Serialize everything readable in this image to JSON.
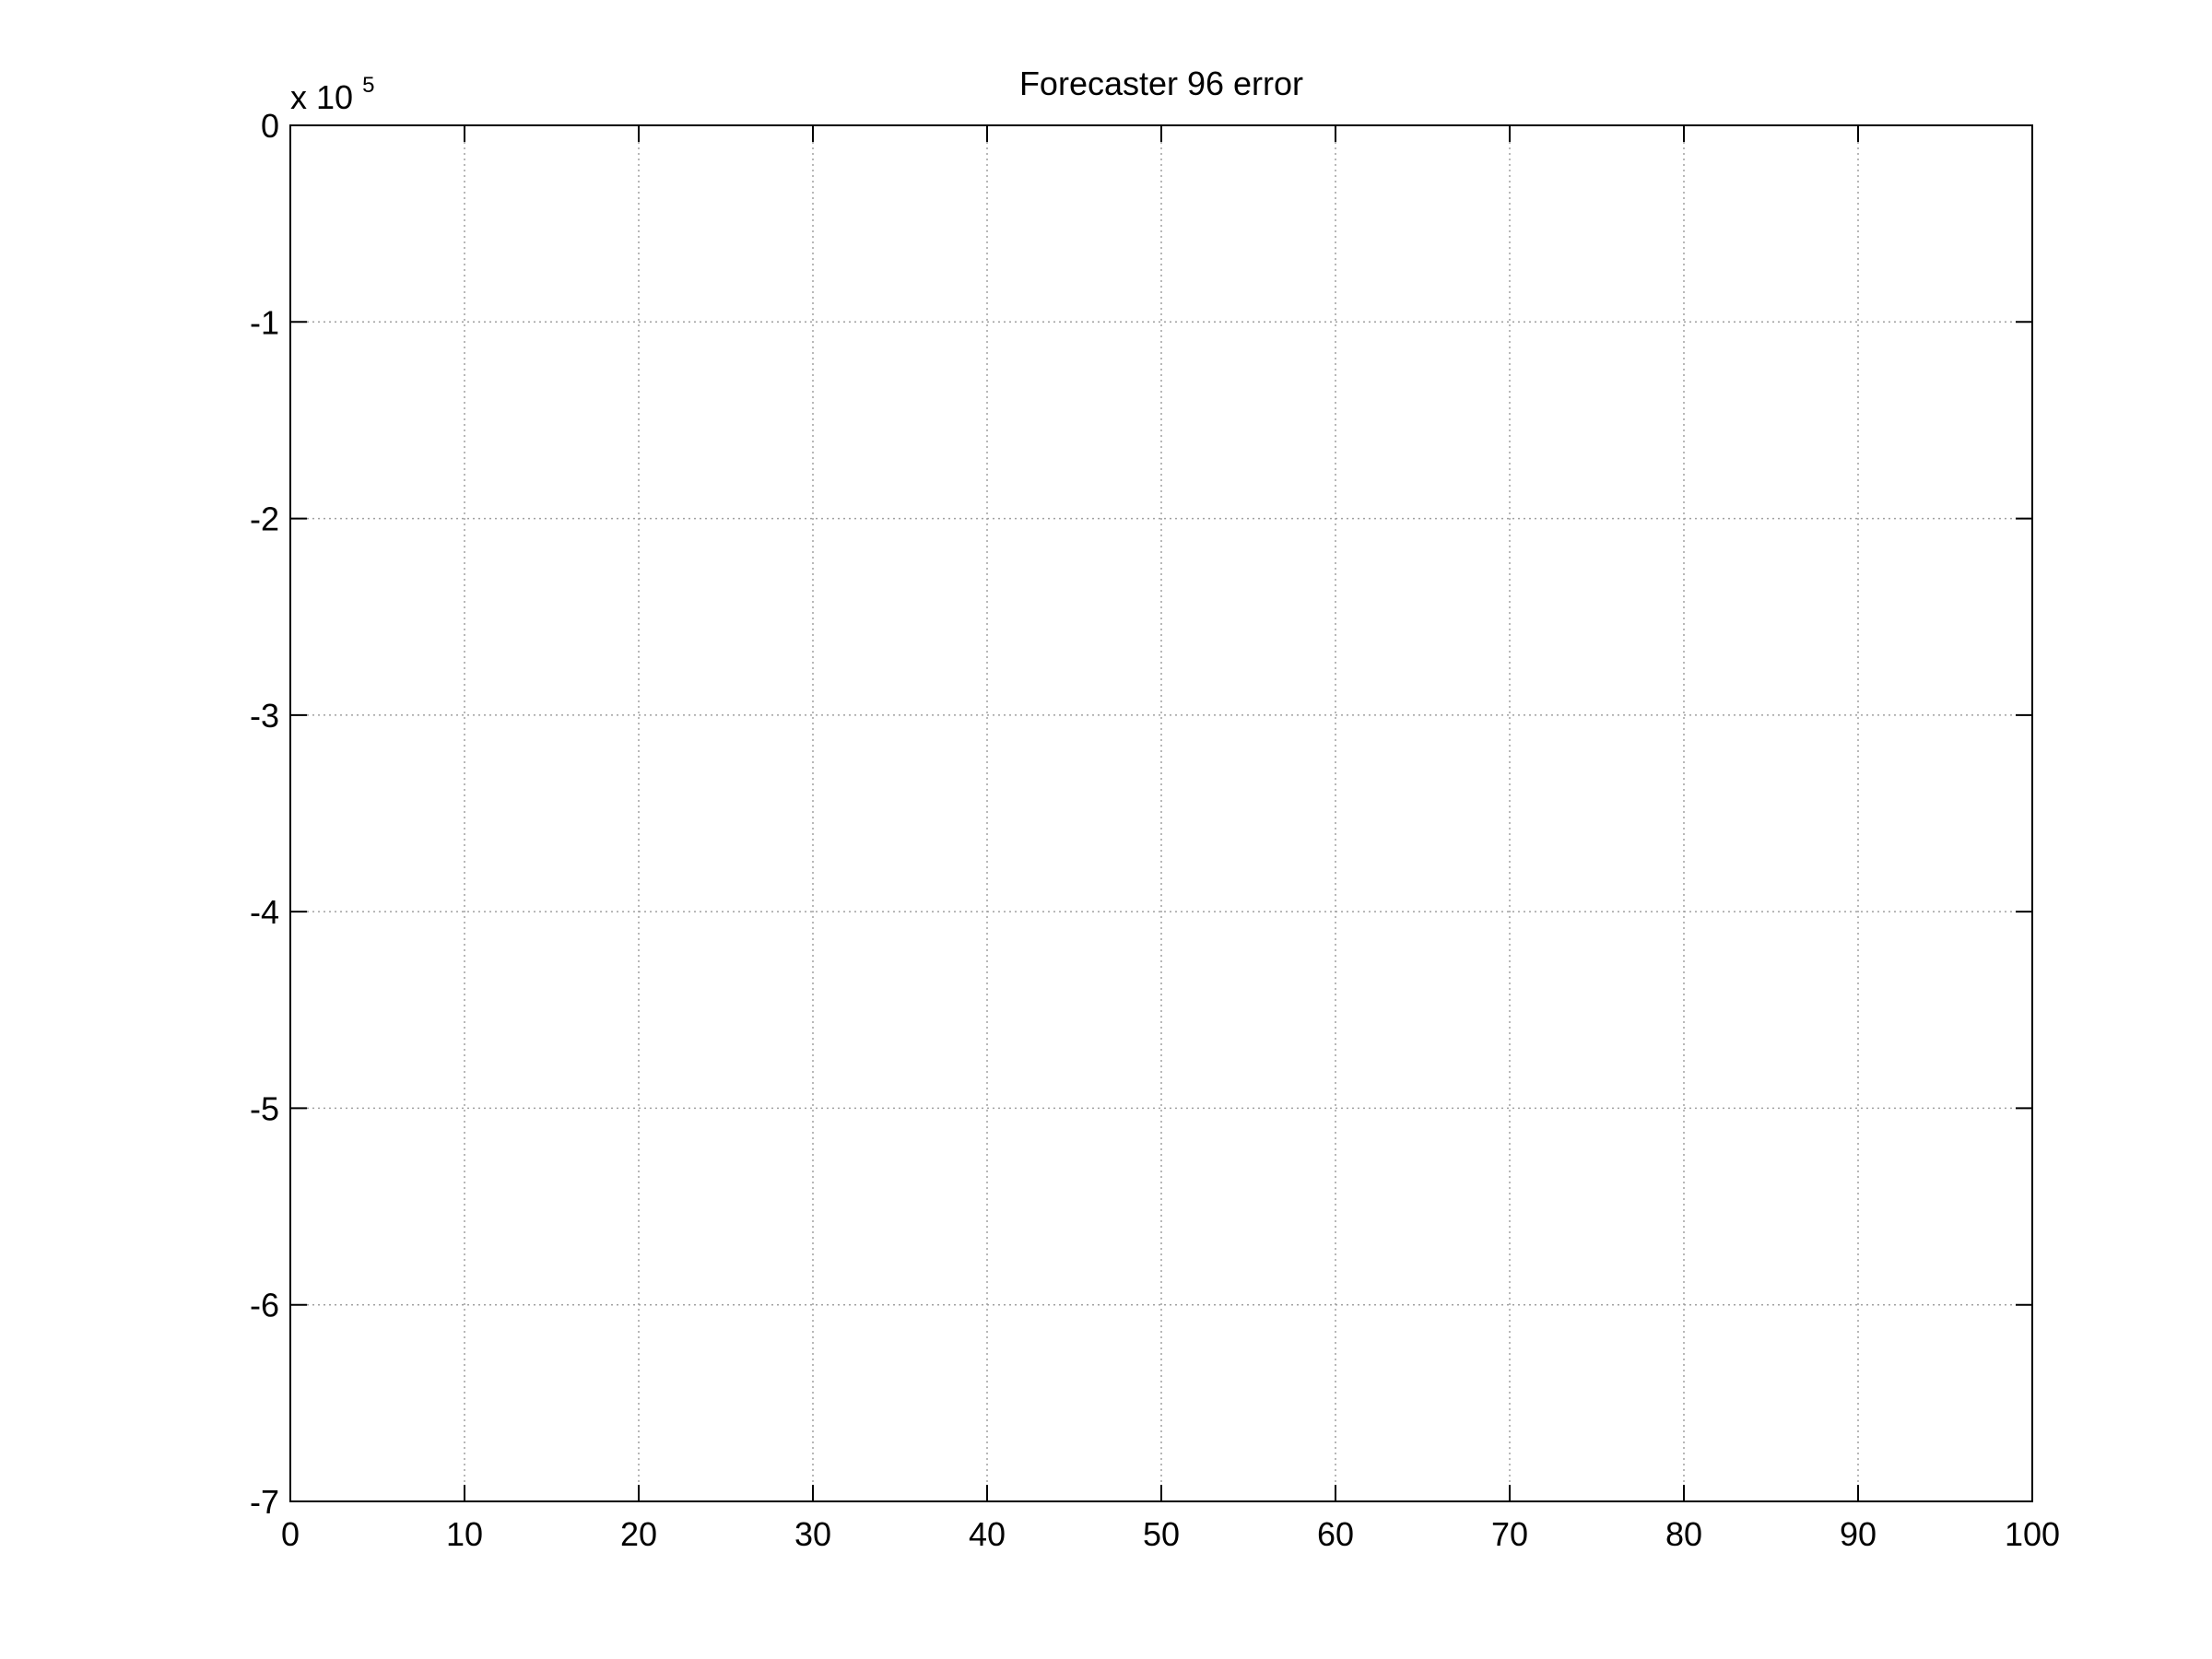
{
  "chart_data": {
    "type": "line",
    "title": "Forecaster 96 error",
    "xlabel": "",
    "ylabel": "",
    "xlim": [
      0,
      100
    ],
    "ylim": [
      -7,
      0
    ],
    "xticks": [
      0,
      10,
      20,
      30,
      40,
      50,
      60,
      70,
      80,
      90,
      100
    ],
    "xtick_labels": [
      "0",
      "10",
      "20",
      "30",
      "40",
      "50",
      "60",
      "70",
      "80",
      "90",
      "100"
    ],
    "yticks": [
      0,
      -1,
      -2,
      -3,
      -4,
      -5,
      -6,
      -7
    ],
    "ytick_labels": [
      "0",
      "-1",
      "-2",
      "-3",
      "-4",
      "-5",
      "-6",
      "-7"
    ],
    "y_multiplier": {
      "base": "x 10",
      "exponent": "5"
    },
    "grid": true,
    "series": []
  },
  "colors": {
    "axes": "#000000",
    "grid": "#a0a0a0",
    "background": "#ffffff"
  }
}
